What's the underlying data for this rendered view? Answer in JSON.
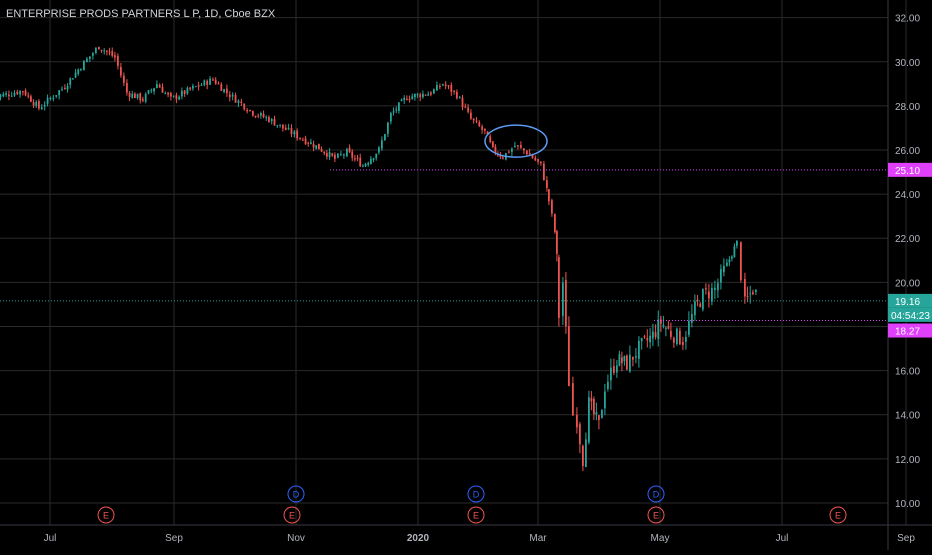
{
  "chart_title": "ENTERPRISE PRODS PARTNERS L P, 1D, Cboe BZX",
  "chart_data": {
    "type": "candlestick",
    "title": "ENTERPRISE PRODS PARTNERS L P, 1D, Cboe BZX",
    "x_tick_labels": [
      "Jul",
      "Sep",
      "Nov",
      "2020",
      "Mar",
      "May",
      "Jul",
      "Sep"
    ],
    "y_tick_labels": [
      "32.00",
      "30.00",
      "28.00",
      "26.00",
      "24.00",
      "22.00",
      "20.00",
      "18.00",
      "16.00",
      "14.00",
      "12.00",
      "10.00"
    ],
    "ylim": [
      9.0,
      32.8
    ],
    "grid": true,
    "close_path": [
      [
        "2019-06-03",
        28.4
      ],
      [
        "2019-06-17",
        28.7
      ],
      [
        "2019-06-25",
        27.9
      ],
      [
        "2019-07-08",
        28.9
      ],
      [
        "2019-07-16",
        29.8
      ],
      [
        "2019-07-25",
        30.7
      ],
      [
        "2019-08-02",
        30.2
      ],
      [
        "2019-08-08",
        28.6
      ],
      [
        "2019-08-16",
        28.3
      ],
      [
        "2019-08-23",
        29.0
      ],
      [
        "2019-08-30",
        28.3
      ],
      [
        "2019-09-10",
        28.8
      ],
      [
        "2019-09-20",
        29.2
      ],
      [
        "2019-09-27",
        28.6
      ],
      [
        "2019-10-10",
        27.7
      ],
      [
        "2019-10-18",
        27.4
      ],
      [
        "2019-10-25",
        27.0
      ],
      [
        "2019-11-04",
        26.5
      ],
      [
        "2019-11-12",
        26.1
      ],
      [
        "2019-11-20",
        25.6
      ],
      [
        "2019-11-26",
        25.9
      ],
      [
        "2019-12-04",
        25.3
      ],
      [
        "2019-12-12",
        26.0
      ],
      [
        "2019-12-18",
        27.6
      ],
      [
        "2019-12-26",
        28.4
      ],
      [
        "2020-01-07",
        28.6
      ],
      [
        "2020-01-13",
        29.0
      ],
      [
        "2020-01-20",
        28.5
      ],
      [
        "2020-01-27",
        27.4
      ],
      [
        "2020-02-03",
        26.8
      ],
      [
        "2020-02-07",
        26.0
      ],
      [
        "2020-02-12",
        25.7
      ],
      [
        "2020-02-18",
        26.2
      ],
      [
        "2020-02-24",
        25.9
      ],
      [
        "2020-03-02",
        25.3
      ],
      [
        "2020-03-05",
        24.2
      ],
      [
        "2020-03-06",
        23.7
      ],
      [
        "2020-03-09",
        22.3
      ],
      [
        "2020-03-10",
        21.0
      ],
      [
        "2020-03-11",
        18.5
      ],
      [
        "2020-03-13",
        20.0
      ],
      [
        "2020-03-16",
        15.5
      ],
      [
        "2020-03-18",
        14.0
      ],
      [
        "2020-03-20",
        13.8
      ],
      [
        "2020-03-23",
        12.0
      ],
      [
        "2020-03-26",
        14.5
      ],
      [
        "2020-03-31",
        13.5
      ],
      [
        "2020-04-03",
        15.3
      ],
      [
        "2020-04-09",
        16.5
      ],
      [
        "2020-04-14",
        16.3
      ],
      [
        "2020-04-20",
        17.0
      ],
      [
        "2020-04-27",
        17.6
      ],
      [
        "2020-05-01",
        18.2
      ],
      [
        "2020-05-06",
        17.7
      ],
      [
        "2020-05-12",
        17.4
      ],
      [
        "2020-05-18",
        18.8
      ],
      [
        "2020-05-22",
        19.4
      ],
      [
        "2020-05-28",
        19.7
      ],
      [
        "2020-06-03",
        20.8
      ],
      [
        "2020-06-08",
        21.8
      ],
      [
        "2020-06-10",
        20.4
      ],
      [
        "2020-06-12",
        19.0
      ],
      [
        "2020-06-16",
        19.7
      ],
      [
        "2020-06-19",
        19.3
      ]
    ],
    "horizontal_levels": [
      {
        "value": 25.1,
        "label": "25.10",
        "color": "#e040fb",
        "style": "dotted"
      },
      {
        "value": 18.27,
        "label": "18.27",
        "color": "#e040fb",
        "style": "dotted"
      },
      {
        "value": 19.16,
        "label": "19.16",
        "color": "#26a69a",
        "style": "dotted"
      }
    ],
    "current_price": 19.16,
    "countdown": "04:54:23",
    "events": [
      {
        "date": "2019-07-29",
        "label": "E",
        "color": "#ef5350"
      },
      {
        "date": "2019-10-30",
        "label": "E",
        "color": "#ef5350"
      },
      {
        "date": "2019-11-01",
        "label": "D",
        "color": "#2962ff"
      },
      {
        "date": "2020-01-30",
        "label": "D",
        "color": "#2962ff"
      },
      {
        "date": "2020-01-30",
        "label": "E",
        "color": "#ef5350"
      },
      {
        "date": "2020-04-29",
        "label": "D",
        "color": "#2962ff"
      },
      {
        "date": "2020-04-29",
        "label": "E",
        "color": "#ef5350"
      },
      {
        "date": "2020-07-29",
        "label": "E",
        "color": "#ef5350"
      }
    ],
    "annotation_ellipse": {
      "date_center": "2020-02-19",
      "price_center": 26.4,
      "color": "#5b9cf6"
    },
    "colors": {
      "up": "#26a69a",
      "down": "#ef5350",
      "grid": "#2a2a2a",
      "text": "#b2b5be"
    }
  }
}
